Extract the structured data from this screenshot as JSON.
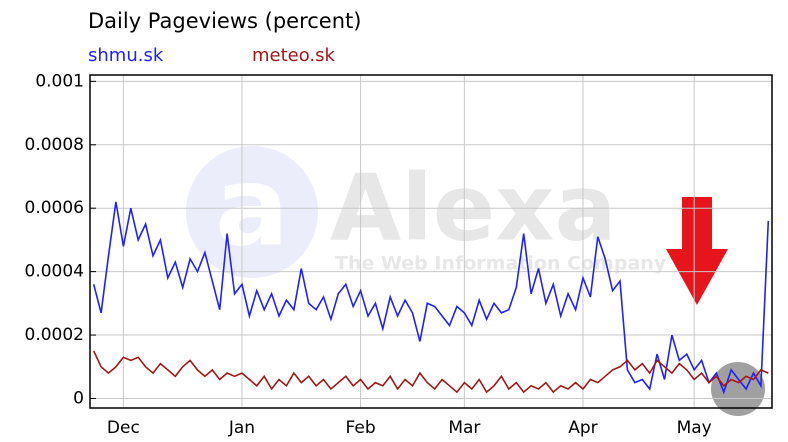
{
  "chart_data": {
    "type": "line",
    "title": "Daily Pageviews (percent)",
    "categories": [
      null,
      null,
      null,
      null,
      "Dec",
      null,
      null,
      null,
      null,
      null,
      null,
      null,
      null,
      null,
      null,
      null,
      null,
      null,
      null,
      null,
      "Jan",
      null,
      null,
      null,
      null,
      null,
      null,
      null,
      null,
      null,
      null,
      null,
      null,
      null,
      null,
      null,
      "Feb",
      null,
      null,
      null,
      null,
      null,
      null,
      null,
      null,
      null,
      null,
      null,
      null,
      null,
      "Mar",
      null,
      null,
      null,
      null,
      null,
      null,
      null,
      null,
      null,
      null,
      null,
      null,
      null,
      null,
      null,
      "Apr",
      null,
      null,
      null,
      null,
      null,
      null,
      null,
      null,
      null,
      null,
      null,
      null,
      null,
      null,
      "May",
      null,
      null,
      null,
      null,
      null,
      null,
      null,
      null,
      null,
      null
    ],
    "series": [
      {
        "name": "shmu.sk",
        "color": "#2020ff",
        "values": [
          0.00036,
          0.00027,
          0.00045,
          0.00062,
          0.00048,
          0.0006,
          0.0005,
          0.00055,
          0.00045,
          0.0005,
          0.00038,
          0.00043,
          0.00035,
          0.00044,
          0.0004,
          0.00046,
          0.00037,
          0.00028,
          0.00052,
          0.00033,
          0.00036,
          0.00026,
          0.00034,
          0.00028,
          0.00033,
          0.00026,
          0.00031,
          0.00028,
          0.00041,
          0.0003,
          0.00028,
          0.00032,
          0.00025,
          0.00033,
          0.00036,
          0.00029,
          0.00034,
          0.00026,
          0.0003,
          0.00022,
          0.00032,
          0.00026,
          0.00031,
          0.00027,
          0.00018,
          0.0003,
          0.00029,
          0.00026,
          0.00023,
          0.00029,
          0.00027,
          0.00023,
          0.00031,
          0.00025,
          0.0003,
          0.00027,
          0.00028,
          0.00035,
          0.00052,
          0.00033,
          0.00041,
          0.0003,
          0.00036,
          0.00026,
          0.00033,
          0.00028,
          0.00038,
          0.00032,
          0.00051,
          0.00044,
          0.00034,
          0.00037,
          9e-05,
          5e-05,
          6e-05,
          3e-05,
          0.00014,
          6e-05,
          0.0002,
          0.00012,
          0.00014,
          9e-05,
          0.00012,
          5e-05,
          8e-05,
          2e-05,
          9e-05,
          6e-05,
          3e-05,
          8e-05,
          4e-05,
          0.00056
        ]
      },
      {
        "name": "meteo.sk",
        "color": "#a01818",
        "values": [
          0.00015,
          0.0001,
          8e-05,
          0.0001,
          0.00013,
          0.00012,
          0.00013,
          0.0001,
          8e-05,
          0.00011,
          9e-05,
          7e-05,
          0.0001,
          0.00012,
          9e-05,
          7e-05,
          9e-05,
          6e-05,
          8e-05,
          7e-05,
          8e-05,
          6e-05,
          4e-05,
          7e-05,
          3e-05,
          6e-05,
          4e-05,
          8e-05,
          5e-05,
          7e-05,
          4e-05,
          6e-05,
          3e-05,
          5e-05,
          7e-05,
          4e-05,
          6e-05,
          3e-05,
          5e-05,
          4e-05,
          7e-05,
          3e-05,
          6e-05,
          4e-05,
          8e-05,
          5e-05,
          3e-05,
          6e-05,
          4e-05,
          2e-05,
          5e-05,
          3e-05,
          6e-05,
          2e-05,
          4e-05,
          7e-05,
          3e-05,
          5e-05,
          2e-05,
          4e-05,
          3e-05,
          5e-05,
          2e-05,
          4e-05,
          3e-05,
          5e-05,
          3e-05,
          6e-05,
          5e-05,
          7e-05,
          9e-05,
          0.0001,
          0.00012,
          9e-05,
          0.00011,
          8e-05,
          0.00012,
          0.0001,
          8e-05,
          0.00011,
          9e-05,
          6e-05,
          8e-05,
          5e-05,
          7e-05,
          4e-05,
          6e-05,
          5e-05,
          7e-05,
          6e-05,
          9e-05,
          8e-05
        ]
      }
    ],
    "ylim": [
      -3e-05,
      0.00102
    ],
    "yticks": [
      0,
      0.0002,
      0.0004,
      0.0006,
      0.0008,
      0.001
    ],
    "grid": true
  },
  "watermark": {
    "logo": "Alexa",
    "tagline": "The Web Information Company"
  }
}
